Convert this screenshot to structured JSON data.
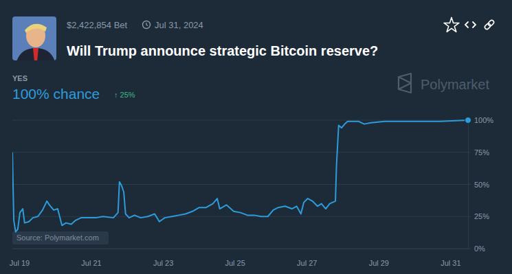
{
  "chart_data": {
    "type": "line",
    "title": "Will Trump announce strategic Bitcoin reserve?",
    "annotations": {
      "volume": "$2,422,854 Bet",
      "date": "Jul 31, 2024",
      "current_label": "100% chance",
      "change_label": "↑ 25%",
      "brand": "Polymarket",
      "source": "Source: Polymarket.com"
    },
    "x": [
      18.81,
      18.85,
      18.9,
      18.96,
      19.02,
      19.1,
      19.15,
      19.27,
      19.38,
      19.52,
      19.65,
      19.77,
      19.84,
      19.96,
      20.07,
      20.19,
      20.3,
      20.45,
      20.57,
      20.72,
      20.91,
      21.14,
      21.33,
      21.62,
      21.75,
      21.79,
      21.85,
      21.91,
      21.96,
      22.06,
      22.21,
      22.38,
      22.58,
      22.77,
      22.9,
      23.05,
      23.25,
      23.44,
      23.63,
      23.82,
      24.01,
      24.2,
      24.39,
      24.51,
      24.58,
      24.77,
      24.97,
      25.16,
      25.35,
      25.54,
      25.73,
      25.92,
      26.07,
      26.21,
      26.4,
      26.59,
      26.72,
      26.84,
      26.92,
      27.03,
      27.16,
      27.3,
      27.41,
      27.53,
      27.64,
      27.8,
      27.83,
      27.89,
      27.97,
      28.06,
      28.14,
      28.31,
      28.45,
      28.6,
      28.79,
      29.17,
      29.94,
      30.7,
      31.49
    ],
    "series": [
      {
        "name": "YES",
        "color": "#2d9cdb",
        "values": [
          75,
          22,
          13,
          15,
          28,
          31,
          20,
          21,
          24,
          25,
          30,
          37,
          34,
          30,
          31,
          18,
          20,
          19,
          22,
          24,
          24,
          24,
          25,
          24,
          28,
          52,
          49,
          44,
          27,
          24,
          26,
          24,
          25,
          27,
          21,
          24,
          25,
          26,
          27,
          29,
          32,
          32,
          35,
          39,
          31,
          34,
          29,
          28,
          26,
          26,
          25,
          25,
          30,
          32,
          33,
          31,
          33,
          27,
          36,
          39,
          37,
          33,
          35,
          31,
          35,
          37,
          65,
          96,
          94,
          97,
          99,
          99,
          99,
          97,
          98,
          99,
          99,
          99,
          100
        ]
      }
    ],
    "xlim": [
      18.81,
      31.49
    ],
    "xticks": [
      {
        "value": 19,
        "label": "Jul 19"
      },
      {
        "value": 21,
        "label": "Jul 21"
      },
      {
        "value": 23,
        "label": "Jul 23"
      },
      {
        "value": 25,
        "label": "Jul 25"
      },
      {
        "value": 27,
        "label": "Jul 27"
      },
      {
        "value": 29,
        "label": "Jul 29"
      },
      {
        "value": 31,
        "label": "Jul 31"
      }
    ],
    "ylim": [
      0,
      100
    ],
    "yticks": [
      {
        "value": 0,
        "label": "0%"
      },
      {
        "value": 25,
        "label": "25%"
      },
      {
        "value": 50,
        "label": "50%"
      },
      {
        "value": 75,
        "label": "75%"
      },
      {
        "value": 100,
        "label": "100%"
      }
    ],
    "grid": true
  }
}
